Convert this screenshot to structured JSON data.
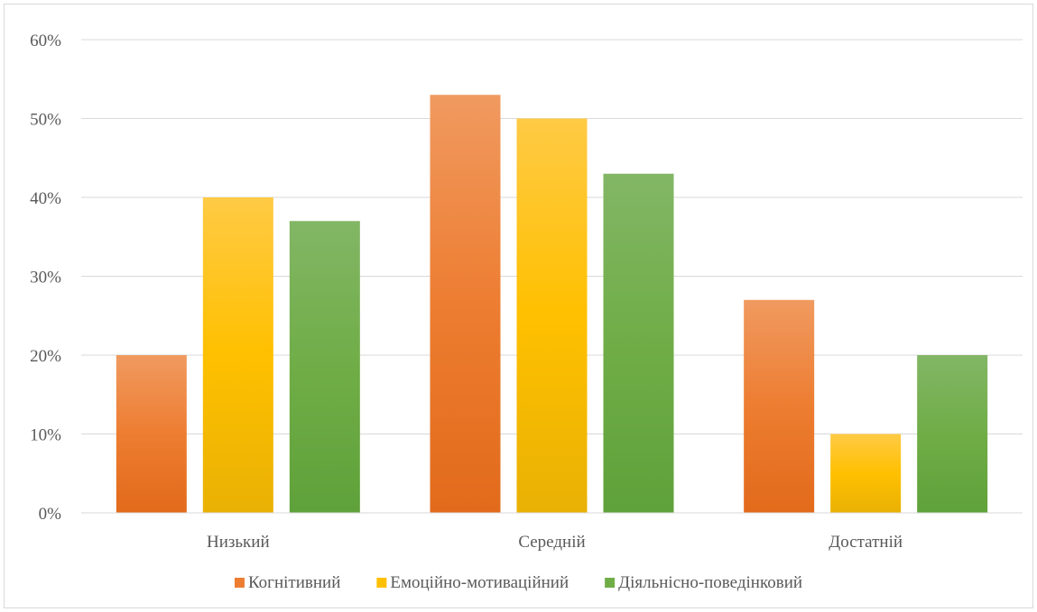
{
  "chart_data": {
    "type": "bar",
    "title": "",
    "xlabel": "",
    "ylabel": "",
    "categories": [
      "Низький",
      "Середній",
      "Достатній"
    ],
    "series": [
      {
        "name": "Когнітивний",
        "values": [
          20,
          53,
          27
        ],
        "color": "#ed7d31",
        "color_light": "#f09a60",
        "color_dark": "#e26a1b"
      },
      {
        "name": "Емоційно-мотиваційний",
        "values": [
          40,
          50,
          10
        ],
        "color": "#ffc000",
        "color_light": "#ffca45",
        "color_dark": "#e9b104"
      },
      {
        "name": "Діяльнісно-поведінковий",
        "values": [
          37,
          43,
          20
        ],
        "color": "#70ad47",
        "color_light": "#82b665",
        "color_dark": "#5fa13a"
      }
    ],
    "ylim": [
      0,
      60
    ],
    "yticks": [
      0,
      10,
      20,
      30,
      40,
      50,
      60
    ],
    "ytick_labels": [
      "0%",
      "10%",
      "20%",
      "30%",
      "40%",
      "50%",
      "60%"
    ],
    "grid": true,
    "legend_position": "bottom",
    "gridline_color": "#d9d9d9",
    "text_color": "#595959"
  }
}
